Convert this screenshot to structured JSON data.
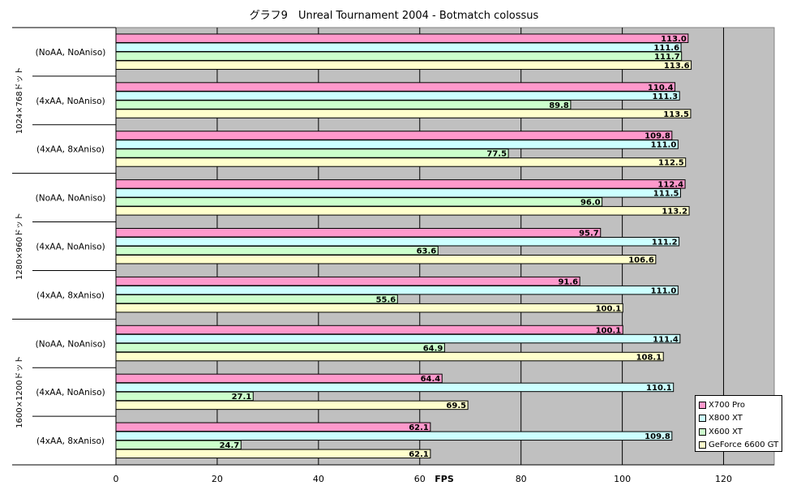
{
  "chart_data": {
    "type": "bar",
    "orientation": "horizontal",
    "title": "グラフ9　Unreal Tournament 2004 - Botmatch colossus",
    "xlabel": "FPS",
    "ylabel": "",
    "xlim": [
      0,
      130
    ],
    "xticks": [
      0,
      20,
      40,
      60,
      80,
      100,
      120
    ],
    "grid": true,
    "legend_position": "bottom-right",
    "resolution_groups": [
      "1024×768ドット",
      "1280×960ドット",
      "1600×1200ドット"
    ],
    "settings": [
      "(NoAA, NoAniso)",
      "(4xAA, NoAniso)",
      "(4xAA, 8xAniso)"
    ],
    "series": [
      {
        "name": "X700 Pro",
        "color": "#ff99cc",
        "values": [
          113.0,
          110.4,
          109.8,
          112.4,
          95.7,
          91.6,
          100.1,
          64.4,
          62.1
        ]
      },
      {
        "name": "X800 XT",
        "color": "#ccffff",
        "values": [
          111.6,
          111.3,
          111.0,
          111.5,
          111.2,
          111.0,
          111.4,
          110.1,
          109.8
        ]
      },
      {
        "name": "X600 XT",
        "color": "#ccffcc",
        "values": [
          111.7,
          89.8,
          77.5,
          96.0,
          63.6,
          55.6,
          64.9,
          27.1,
          24.7
        ]
      },
      {
        "name": "GeForce 6600 GT",
        "color": "#ffffcc",
        "values": [
          113.6,
          113.5,
          112.5,
          113.2,
          106.6,
          100.1,
          108.1,
          69.5,
          62.1
        ]
      }
    ],
    "plot_background": "#c0c0c0"
  }
}
